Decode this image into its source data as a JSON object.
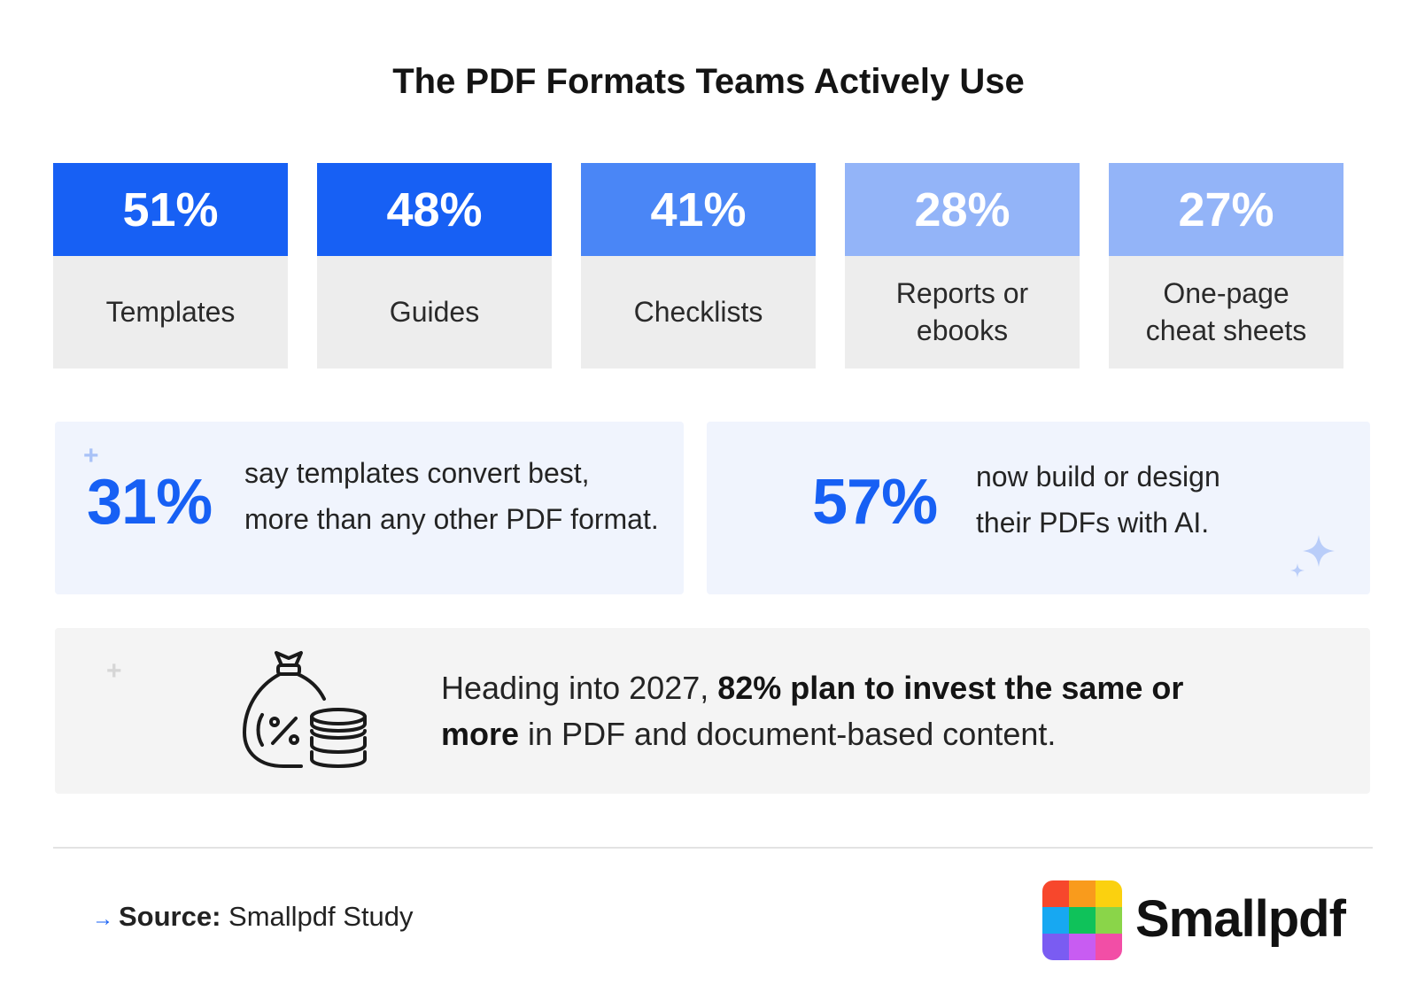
{
  "chart_data": {
    "type": "bar",
    "title": "The PDF Formats Teams Actively Use",
    "categories": [
      "Templates",
      "Guides",
      "Checklists",
      "Reports or ebooks",
      "One-page cheat sheets"
    ],
    "values": [
      51,
      48,
      41,
      28,
      27
    ],
    "value_labels": [
      "51%",
      "48%",
      "41%",
      "28%",
      "27%"
    ],
    "category_lines": [
      [
        "Templates"
      ],
      [
        "Guides"
      ],
      [
        "Checklists"
      ],
      [
        "Reports or",
        "ebooks"
      ],
      [
        "One-page",
        "cheat sheets"
      ]
    ],
    "colors": [
      "#1760f4",
      "#1760f4",
      "#4a86f6",
      "#93b4f8",
      "#93b4f8"
    ]
  },
  "stats": [
    {
      "value": "31%",
      "text_line1": "say templates convert best,",
      "text_line2": "more than any other PDF format."
    },
    {
      "value": "57%",
      "text_line1": "now build or design",
      "text_line2": "their PDFs with AI."
    }
  ],
  "highlight": {
    "prefix": "Heading into 2027, ",
    "bold1": "82% plan to invest the same or",
    "bold2": "more",
    "suffix": " in PDF and document-based content.",
    "icon": "money-bag-percent-icon"
  },
  "source": {
    "label": "Source:",
    "value": "Smallpdf Study"
  },
  "brand": {
    "name": "Smallpdf",
    "logo_colors": [
      "#f7472c",
      "#f99b1c",
      "#fbd10f",
      "#17a8f2",
      "#0fc25a",
      "#8ad549",
      "#7a5cf2",
      "#c85cf2",
      "#f24ea6"
    ]
  }
}
